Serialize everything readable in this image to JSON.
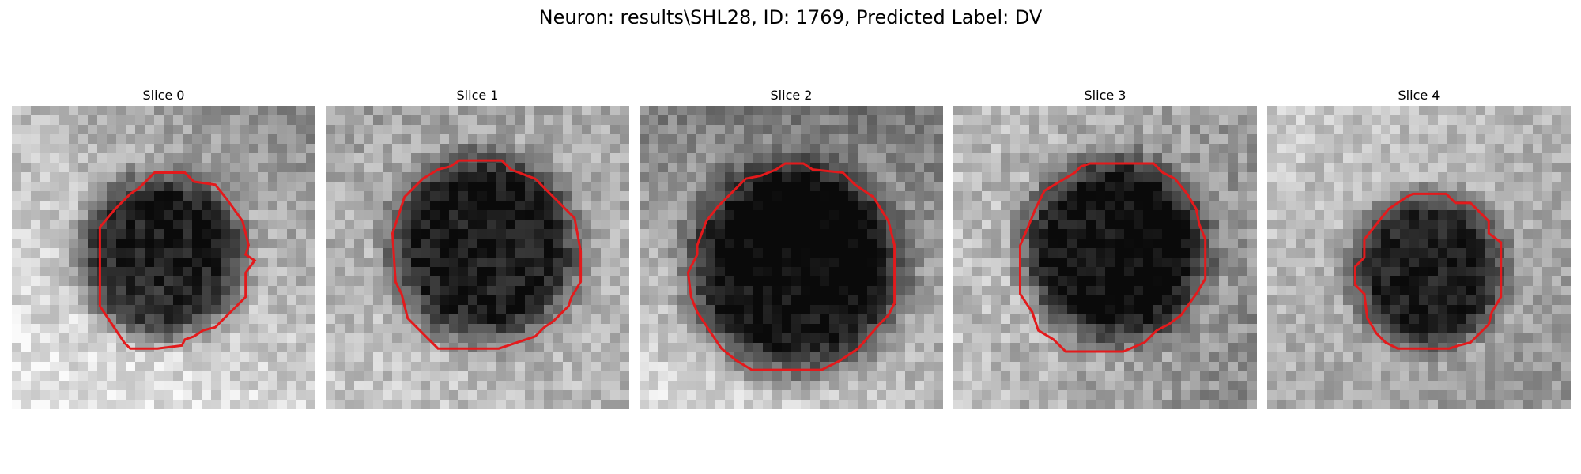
{
  "figure": {
    "title": "Neuron: results\\SHL28, ID: 1769, Predicted Label: DV"
  },
  "colors": {
    "contour": "#e31a1c",
    "background": "#ffffff"
  },
  "slices": [
    {
      "label": "Slice 0",
      "image": {
        "cell_center": [
          0.49,
          0.5
        ],
        "cell_radius": 0.29,
        "cell_darkness": 0.62,
        "background_bias": [
          0.12,
          -0.1,
          0.3,
          0.22
        ],
        "grain": 0.24
      },
      "roi_contour": [
        [
          0.47,
          0.22
        ],
        [
          0.57,
          0.22
        ],
        [
          0.6,
          0.25
        ],
        [
          0.67,
          0.26
        ],
        [
          0.71,
          0.31
        ],
        [
          0.76,
          0.38
        ],
        [
          0.78,
          0.46
        ],
        [
          0.77,
          0.49
        ],
        [
          0.8,
          0.51
        ],
        [
          0.77,
          0.55
        ],
        [
          0.77,
          0.63
        ],
        [
          0.67,
          0.73
        ],
        [
          0.63,
          0.74
        ],
        [
          0.6,
          0.76
        ],
        [
          0.57,
          0.77
        ],
        [
          0.56,
          0.79
        ],
        [
          0.48,
          0.8
        ],
        [
          0.39,
          0.8
        ],
        [
          0.37,
          0.78
        ],
        [
          0.31,
          0.69
        ],
        [
          0.29,
          0.66
        ],
        [
          0.29,
          0.4
        ],
        [
          0.34,
          0.34
        ],
        [
          0.39,
          0.29
        ],
        [
          0.42,
          0.27
        ],
        [
          0.45,
          0.24
        ]
      ]
    },
    {
      "label": "Slice 1",
      "image": {
        "cell_center": [
          0.52,
          0.47
        ],
        "cell_radius": 0.33,
        "cell_darkness": 0.6,
        "background_bias": [
          0.0,
          0.05,
          0.18,
          0.08
        ],
        "grain": 0.25
      },
      "roi_contour": [
        [
          0.44,
          0.18
        ],
        [
          0.58,
          0.18
        ],
        [
          0.61,
          0.21
        ],
        [
          0.69,
          0.24
        ],
        [
          0.76,
          0.31
        ],
        [
          0.82,
          0.37
        ],
        [
          0.84,
          0.48
        ],
        [
          0.84,
          0.58
        ],
        [
          0.81,
          0.63
        ],
        [
          0.8,
          0.66
        ],
        [
          0.75,
          0.71
        ],
        [
          0.72,
          0.73
        ],
        [
          0.69,
          0.76
        ],
        [
          0.6,
          0.79
        ],
        [
          0.57,
          0.8
        ],
        [
          0.37,
          0.8
        ],
        [
          0.31,
          0.74
        ],
        [
          0.27,
          0.7
        ],
        [
          0.25,
          0.62
        ],
        [
          0.23,
          0.58
        ],
        [
          0.22,
          0.42
        ],
        [
          0.24,
          0.36
        ],
        [
          0.26,
          0.3
        ],
        [
          0.32,
          0.24
        ],
        [
          0.37,
          0.21
        ],
        [
          0.41,
          0.2
        ]
      ]
    },
    {
      "label": "Slice 2",
      "image": {
        "cell_center": [
          0.51,
          0.54
        ],
        "cell_radius": 0.37,
        "cell_darkness": 0.64,
        "background_bias": [
          -0.12,
          -0.16,
          0.25,
          0.12
        ],
        "grain": 0.24
      },
      "roi_contour": [
        [
          0.48,
          0.19
        ],
        [
          0.54,
          0.19
        ],
        [
          0.57,
          0.21
        ],
        [
          0.67,
          0.22
        ],
        [
          0.71,
          0.26
        ],
        [
          0.77,
          0.3
        ],
        [
          0.82,
          0.38
        ],
        [
          0.84,
          0.46
        ],
        [
          0.84,
          0.65
        ],
        [
          0.82,
          0.69
        ],
        [
          0.79,
          0.72
        ],
        [
          0.72,
          0.8
        ],
        [
          0.66,
          0.84
        ],
        [
          0.6,
          0.87
        ],
        [
          0.37,
          0.87
        ],
        [
          0.32,
          0.84
        ],
        [
          0.27,
          0.8
        ],
        [
          0.23,
          0.74
        ],
        [
          0.19,
          0.68
        ],
        [
          0.17,
          0.63
        ],
        [
          0.16,
          0.55
        ],
        [
          0.19,
          0.49
        ],
        [
          0.19,
          0.46
        ],
        [
          0.22,
          0.38
        ],
        [
          0.26,
          0.33
        ],
        [
          0.32,
          0.27
        ],
        [
          0.35,
          0.24
        ],
        [
          0.4,
          0.23
        ],
        [
          0.45,
          0.21
        ]
      ]
    },
    {
      "label": "Slice 3",
      "image": {
        "cell_center": [
          0.53,
          0.47
        ],
        "cell_radius": 0.32,
        "cell_darkness": 0.63,
        "background_bias": [
          0.12,
          -0.02,
          0.14,
          -0.08
        ],
        "grain": 0.27
      },
      "roi_contour": [
        [
          0.45,
          0.19
        ],
        [
          0.66,
          0.19
        ],
        [
          0.69,
          0.22
        ],
        [
          0.73,
          0.24
        ],
        [
          0.77,
          0.29
        ],
        [
          0.8,
          0.34
        ],
        [
          0.81,
          0.39
        ],
        [
          0.83,
          0.44
        ],
        [
          0.83,
          0.57
        ],
        [
          0.8,
          0.62
        ],
        [
          0.75,
          0.69
        ],
        [
          0.71,
          0.72
        ],
        [
          0.67,
          0.74
        ],
        [
          0.63,
          0.78
        ],
        [
          0.56,
          0.81
        ],
        [
          0.37,
          0.81
        ],
        [
          0.33,
          0.77
        ],
        [
          0.28,
          0.74
        ],
        [
          0.26,
          0.68
        ],
        [
          0.22,
          0.62
        ],
        [
          0.22,
          0.46
        ],
        [
          0.25,
          0.39
        ],
        [
          0.27,
          0.34
        ],
        [
          0.3,
          0.28
        ],
        [
          0.35,
          0.25
        ],
        [
          0.4,
          0.22
        ],
        [
          0.42,
          0.2
        ]
      ]
    },
    {
      "label": "Slice 4",
      "image": {
        "cell_center": [
          0.53,
          0.54
        ],
        "cell_radius": 0.27,
        "cell_darkness": 0.56,
        "background_bias": [
          0.18,
          0.08,
          0.05,
          -0.04
        ],
        "grain": 0.22
      },
      "roi_contour": [
        [
          0.48,
          0.29
        ],
        [
          0.59,
          0.29
        ],
        [
          0.62,
          0.32
        ],
        [
          0.67,
          0.32
        ],
        [
          0.7,
          0.35
        ],
        [
          0.73,
          0.38
        ],
        [
          0.73,
          0.42
        ],
        [
          0.77,
          0.45
        ],
        [
          0.77,
          0.63
        ],
        [
          0.74,
          0.68
        ],
        [
          0.73,
          0.72
        ],
        [
          0.7,
          0.75
        ],
        [
          0.67,
          0.78
        ],
        [
          0.63,
          0.79
        ],
        [
          0.6,
          0.8
        ],
        [
          0.43,
          0.8
        ],
        [
          0.39,
          0.78
        ],
        [
          0.36,
          0.75
        ],
        [
          0.33,
          0.7
        ],
        [
          0.32,
          0.62
        ],
        [
          0.29,
          0.59
        ],
        [
          0.29,
          0.53
        ],
        [
          0.32,
          0.5
        ],
        [
          0.32,
          0.44
        ],
        [
          0.36,
          0.39
        ],
        [
          0.4,
          0.34
        ],
        [
          0.43,
          0.32
        ],
        [
          0.46,
          0.3
        ]
      ]
    }
  ]
}
